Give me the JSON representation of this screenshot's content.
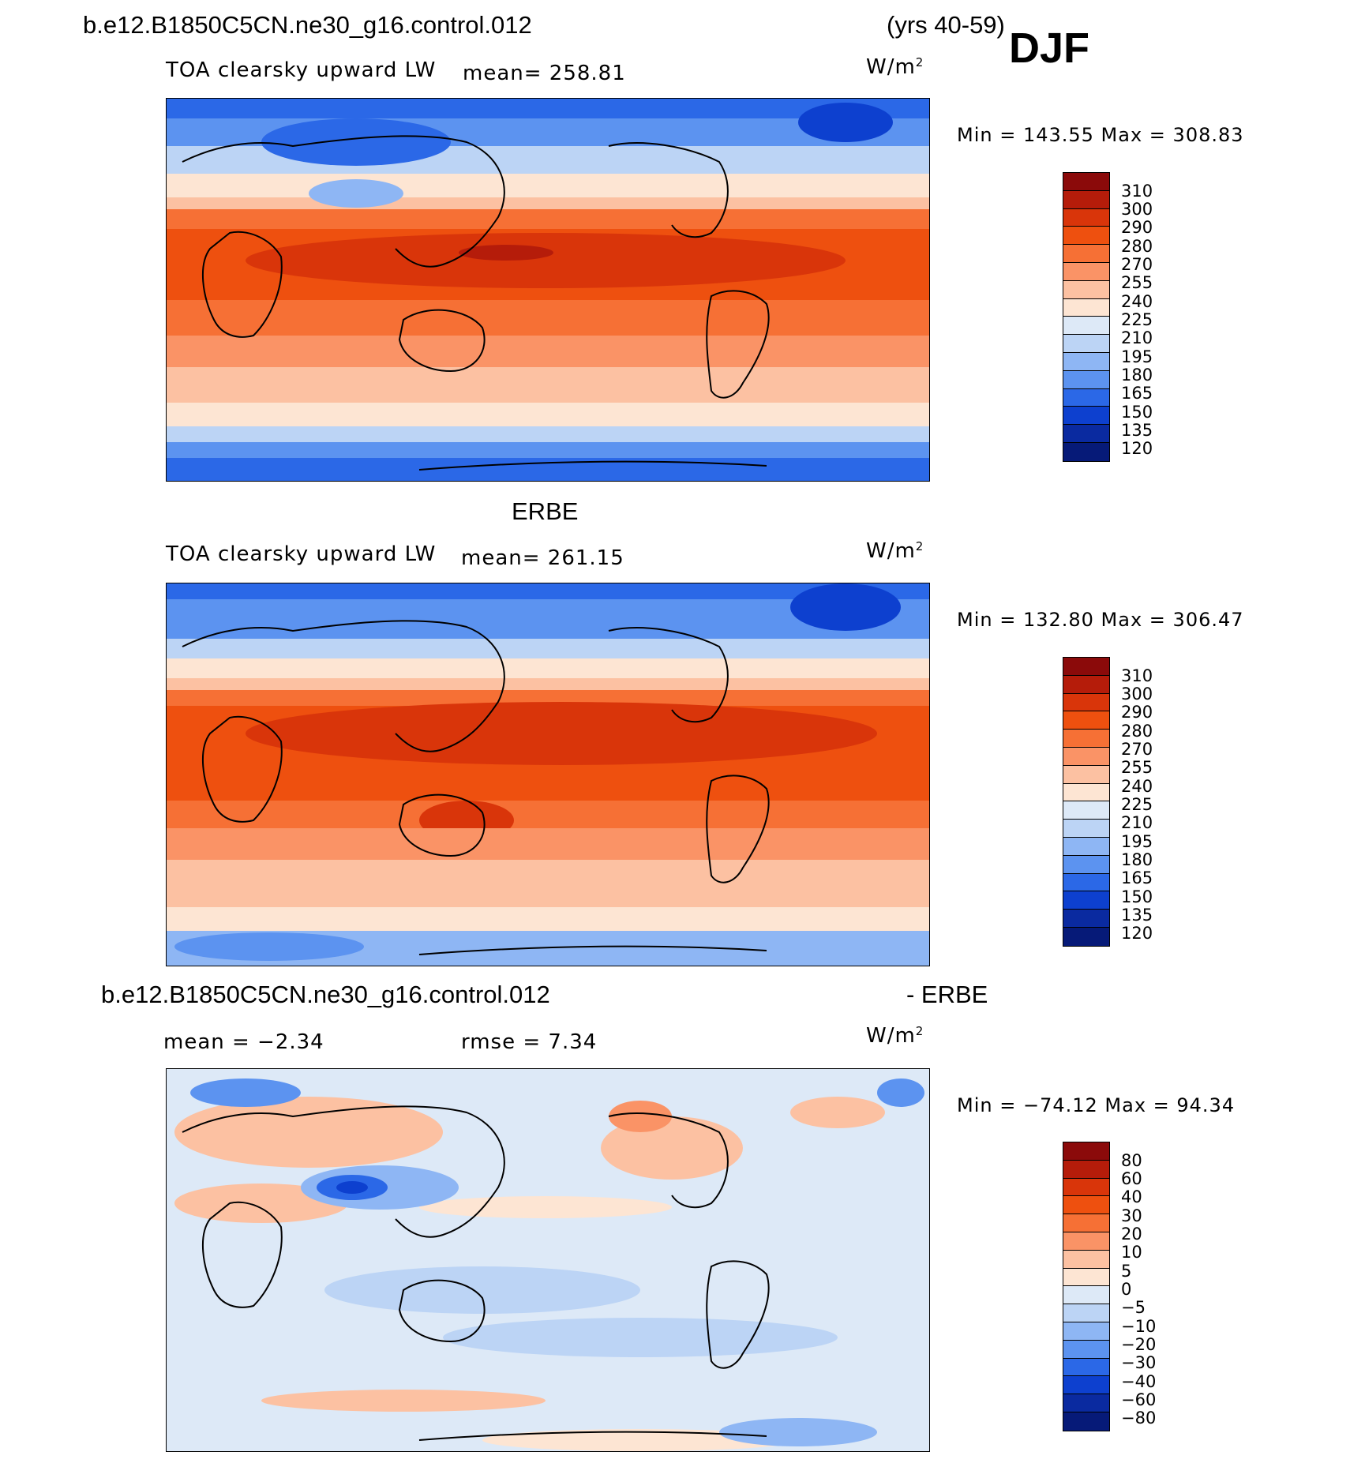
{
  "header": {
    "case_name": "b.e12.B1850C5CN.ne30_g16.control.012",
    "years": "(yrs 40-59)",
    "season": "DJF"
  },
  "panels": [
    {
      "id": "model",
      "title": "",
      "variable": "TOA clearsky upward LW",
      "mean_label": "mean= 258.81",
      "units_base": "W/m",
      "units_exp": "2",
      "minmax": "Min  =  143.55  Max  =  308.83"
    },
    {
      "id": "obs",
      "title": "ERBE",
      "variable": "TOA clearsky upward LW",
      "mean_label": "mean= 261.15",
      "units_base": "W/m",
      "units_exp": "2",
      "minmax": "Min  =  132.80  Max  =  306.47"
    },
    {
      "id": "diff",
      "title_left": "b.e12.B1850C5CN.ne30_g16.control.012",
      "title_right": "- ERBE",
      "mean_label": "mean  =   −2.34",
      "rmse_label": "rmse  =    7.34",
      "units_base": "W/m",
      "units_exp": "2",
      "minmax": "Min  =  −74.12  Max  =   94.34"
    }
  ],
  "colorbars": {
    "absolute": {
      "labels": [
        "310",
        "300",
        "290",
        "280",
        "270",
        "255",
        "240",
        "225",
        "210",
        "195",
        "180",
        "165",
        "150",
        "135",
        "120"
      ],
      "colors": [
        "#8b0a0a",
        "#b51c0a",
        "#d9350a",
        "#ee500f",
        "#f67035",
        "#fa9366",
        "#fcc1a2",
        "#fde5d3",
        "#dde9f7",
        "#bcd4f5",
        "#8eb6f4",
        "#5c93f0",
        "#2b68e7",
        "#0d40cf",
        "#0a2aa0",
        "#061a78"
      ]
    },
    "difference": {
      "labels": [
        "80",
        "60",
        "40",
        "30",
        "20",
        "10",
        "5",
        "0",
        "−5",
        "−10",
        "−20",
        "−30",
        "−40",
        "−60",
        "−80"
      ],
      "colors": [
        "#8b0a0a",
        "#b51c0a",
        "#d9350a",
        "#ee500f",
        "#f67035",
        "#fa9366",
        "#fcc1a2",
        "#fde5d3",
        "#dde9f7",
        "#bcd4f5",
        "#8eb6f4",
        "#5c93f0",
        "#2b68e7",
        "#0d40cf",
        "#0a2aa0",
        "#061a78"
      ]
    }
  }
}
